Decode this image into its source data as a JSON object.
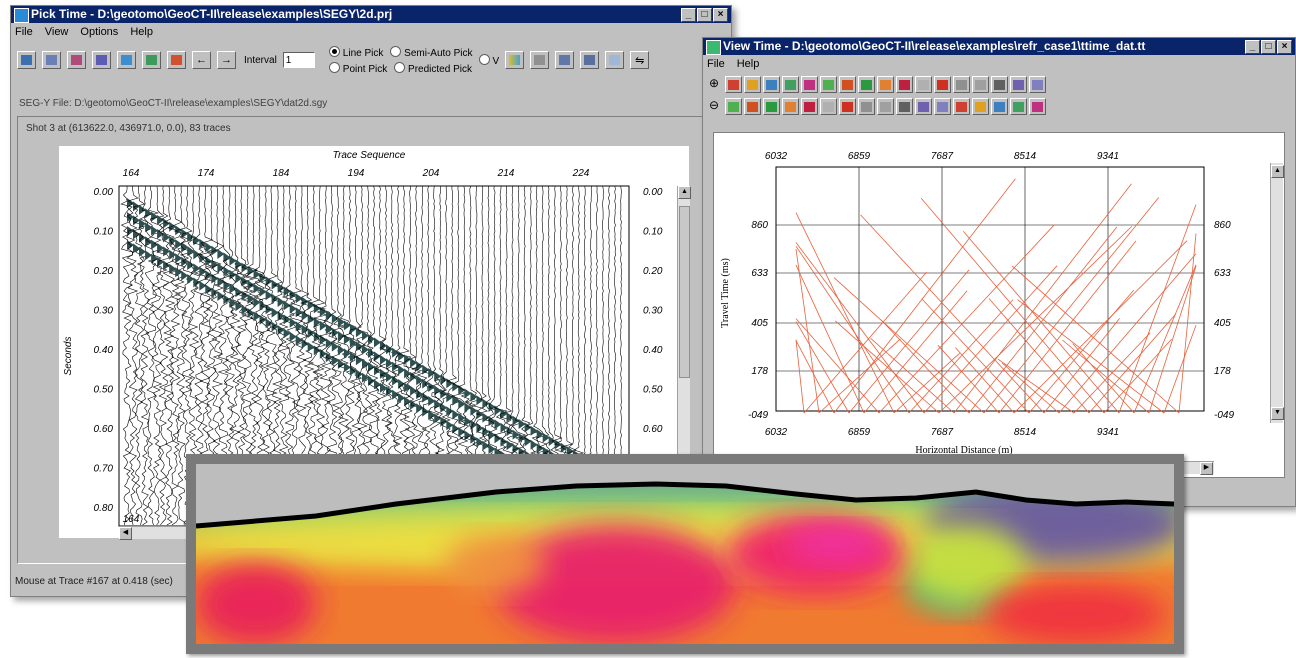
{
  "pick_window": {
    "title": "Pick Time - D:\\geotomo\\GeoCT-II\\release\\examples\\SEGY\\2d.prj",
    "menu": [
      "File",
      "View",
      "Options",
      "Help"
    ],
    "interval_label": "Interval",
    "interval_value": "1",
    "pick_modes": {
      "line": "Line Pick",
      "semi_auto": "Semi-Auto Pick",
      "point": "Point Pick",
      "predicted": "Predicted Pick",
      "v": "V"
    },
    "segy_file": "SEG-Y File: D:\\geotomo\\GeoCT-II\\release\\examples\\SEGY\\dat2d.sgy",
    "shot_info": "Shot 3 at (613622.0, 436971.0, 0.0), 83 traces",
    "x_axis_title": "Trace Sequence",
    "y_axis_title": "Seconds",
    "trace_ticks": [
      "164",
      "174",
      "184",
      "194",
      "204",
      "214",
      "224"
    ],
    "time_ticks": [
      "0.00",
      "0.10",
      "0.20",
      "0.30",
      "0.40",
      "0.50",
      "0.60",
      "0.70",
      "0.80"
    ],
    "bottom_left_tick": "164",
    "status": "Mouse at Trace #167 at 0.418 (sec)"
  },
  "view_window": {
    "title": "View Time - D:\\geotomo\\GeoCT-II\\release\\examples\\refr_case1\\ttime_dat.tt",
    "menu": [
      "File",
      "Help"
    ],
    "y_axis_title": "Travel Time (ms)",
    "x_axis_title": "Horizontal Distance (m)",
    "x_ticks": [
      "6032",
      "6859",
      "7687",
      "8514",
      "9341"
    ],
    "y_ticks": [
      "860",
      "633",
      "405",
      "178",
      "-049"
    ]
  },
  "colors": {
    "titlebar": "#0a246a",
    "window_face": "#c0c0c0",
    "travel_time_curve": "#e8603c",
    "wiggle_fill": "#2f5050"
  },
  "icons": {
    "pick_toolbar": [
      "shot-icon",
      "trace-icon",
      "gather-icon",
      "filter-icon",
      "display-icon",
      "gain-icon",
      "wave-icon",
      "previous-arrow-icon",
      "next-arrow-icon"
    ],
    "pick_toolbar_right": [
      "color-icon",
      "save-icon",
      "pick-icon",
      "pick2-icon",
      "export-icon",
      "fit-icon"
    ],
    "view_zoom": [
      "zoom-in-icon",
      "zoom-out-icon"
    ]
  }
}
